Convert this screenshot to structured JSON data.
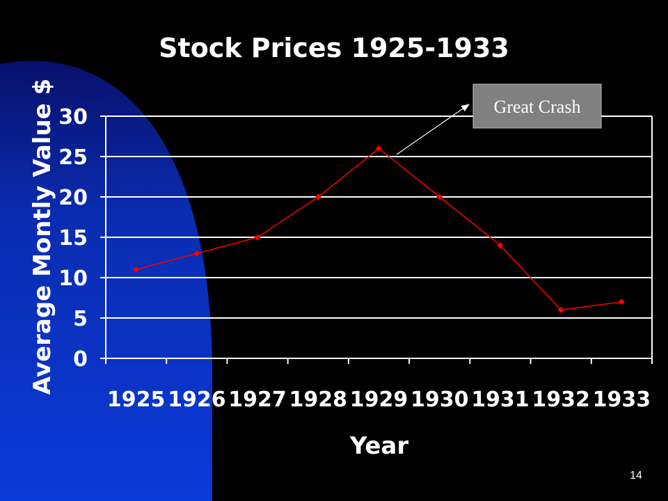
{
  "slide": {
    "number": "14",
    "background_color": "#000000",
    "accent_color": "#0a3ad8"
  },
  "chart_data": {
    "type": "line",
    "title": "Stock Prices 1925-1933",
    "xlabel": "Year",
    "ylabel": "Average Montly Value $",
    "categories": [
      "1925",
      "1926",
      "1927",
      "1928",
      "1929",
      "1930",
      "1931",
      "1932",
      "1933"
    ],
    "series": [
      {
        "values": [
          11,
          13,
          15,
          20,
          26,
          20,
          14,
          6,
          7
        ],
        "color": "#ff0000",
        "marker": "diamond"
      }
    ],
    "ylim": [
      0,
      30
    ],
    "yticks": [
      0,
      5,
      10,
      15,
      20,
      25,
      30
    ],
    "grid": true,
    "grid_color": "#ffffff",
    "legend": "none",
    "annotations": [
      {
        "text": "Great Crash",
        "points_to_category": "1929",
        "box_color": "#808080"
      }
    ]
  }
}
